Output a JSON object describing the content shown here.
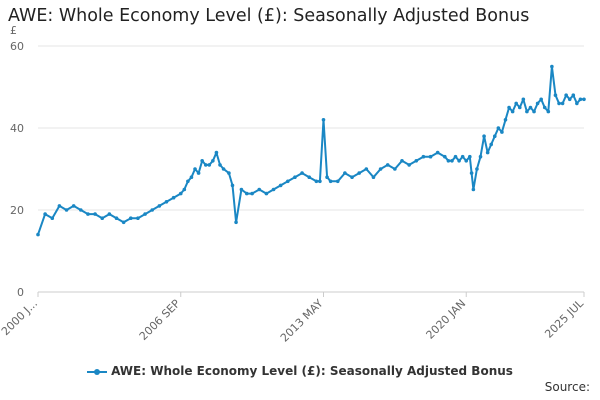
{
  "title": "AWE: Whole Economy Level (£): Seasonally Adjusted Bonus",
  "source_label": "Source:",
  "colors": {
    "series": "#1a87c4",
    "grid": "#e6e6e6",
    "axis": "#cccccc"
  },
  "chart_data": {
    "type": "line",
    "title": "AWE: Whole Economy Level (£): Seasonally Adjusted Bonus",
    "ylabel": "£",
    "ylim": [
      0,
      60
    ],
    "yticks": [
      0,
      20,
      40,
      60
    ],
    "xlim": [
      "2000-01",
      "2025-07"
    ],
    "xticks": [
      {
        "date": "2000-01",
        "label": "2000 J..."
      },
      {
        "date": "2006-09",
        "label": "2006 SEP"
      },
      {
        "date": "2013-05",
        "label": "2013 MAY"
      },
      {
        "date": "2020-01",
        "label": "2020 JAN"
      },
      {
        "date": "2025-07",
        "label": "2025 JUL"
      }
    ],
    "grid": true,
    "legend": "bottom",
    "series": [
      {
        "name": "AWE: Whole Economy Level (£): Seasonally Adjusted Bonus",
        "x": [
          "2000-01",
          "2000-05",
          "2000-09",
          "2001-01",
          "2001-05",
          "2001-09",
          "2002-01",
          "2002-05",
          "2002-09",
          "2003-01",
          "2003-05",
          "2003-09",
          "2004-01",
          "2004-05",
          "2004-09",
          "2005-01",
          "2005-05",
          "2005-09",
          "2006-01",
          "2006-05",
          "2006-09",
          "2006-11",
          "2007-01",
          "2007-03",
          "2007-05",
          "2007-07",
          "2007-09",
          "2007-11",
          "2008-01",
          "2008-03",
          "2008-05",
          "2008-07",
          "2008-09",
          "2008-12",
          "2009-02",
          "2009-04",
          "2009-07",
          "2009-10",
          "2010-01",
          "2010-05",
          "2010-09",
          "2011-01",
          "2011-05",
          "2011-09",
          "2012-01",
          "2012-05",
          "2012-09",
          "2013-01",
          "2013-03",
          "2013-05",
          "2013-07",
          "2013-09",
          "2014-01",
          "2014-05",
          "2014-09",
          "2015-01",
          "2015-05",
          "2015-09",
          "2016-01",
          "2016-05",
          "2016-09",
          "2017-01",
          "2017-05",
          "2017-09",
          "2018-01",
          "2018-05",
          "2018-09",
          "2019-01",
          "2019-03",
          "2019-05",
          "2019-07",
          "2019-09",
          "2019-11",
          "2020-01",
          "2020-03",
          "2020-04",
          "2020-05",
          "2020-07",
          "2020-09",
          "2020-11",
          "2021-01",
          "2021-03",
          "2021-05",
          "2021-07",
          "2021-09",
          "2021-11",
          "2022-01",
          "2022-03",
          "2022-05",
          "2022-07",
          "2022-09",
          "2022-11",
          "2023-01",
          "2023-03",
          "2023-05",
          "2023-07",
          "2023-09",
          "2023-11",
          "2024-01",
          "2024-03",
          "2024-05",
          "2024-07",
          "2024-09",
          "2024-11",
          "2025-01",
          "2025-03",
          "2025-05",
          "2025-07"
        ],
        "values": [
          14,
          19,
          18,
          21,
          20,
          21,
          20,
          19,
          19,
          18,
          19,
          18,
          17,
          18,
          18,
          19,
          20,
          21,
          22,
          23,
          24,
          25,
          27,
          28,
          30,
          29,
          32,
          31,
          31,
          32,
          34,
          31,
          30,
          29,
          26,
          17,
          25,
          24,
          24,
          25,
          24,
          25,
          26,
          27,
          28,
          29,
          28,
          27,
          27,
          42,
          28,
          27,
          27,
          29,
          28,
          29,
          30,
          28,
          30,
          31,
          30,
          32,
          31,
          32,
          33,
          33,
          34,
          33,
          32,
          32,
          33,
          32,
          33,
          32,
          33,
          29,
          25,
          30,
          33,
          38,
          34,
          36,
          38,
          40,
          39,
          42,
          45,
          44,
          46,
          45,
          47,
          44,
          45,
          44,
          46,
          47,
          45,
          44,
          55,
          48,
          46,
          46,
          48,
          47,
          48,
          46,
          47,
          47
        ]
      }
    ]
  }
}
